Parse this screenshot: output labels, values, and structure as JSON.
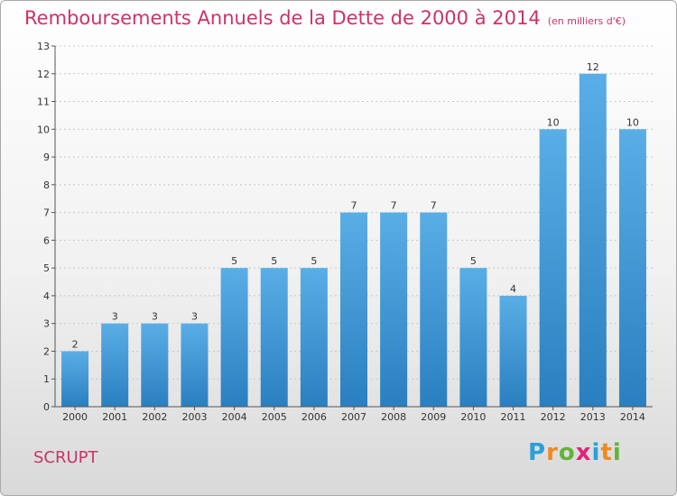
{
  "header": {
    "title": "Remboursements Annuels de la Dette de 2000 à 2014",
    "subtitle": "(en milliers d'€)"
  },
  "footer": {
    "commune": "SCRUPT",
    "logo_letters": [
      "P",
      "r",
      "o",
      "x",
      "i",
      "t",
      "i"
    ],
    "logo_colors": [
      "#2ba0d8",
      "#f08a1d",
      "#5fb537",
      "#e2237a",
      "#2ba0d8",
      "#f08a1d",
      "#5fb537"
    ]
  },
  "colors": {
    "bar_top": "#5aaee6",
    "bar_bottom": "#2a7fc0",
    "title": "#cc3366"
  },
  "chart_data": {
    "type": "bar",
    "categories": [
      "2000",
      "2001",
      "2002",
      "2003",
      "2004",
      "2005",
      "2006",
      "2007",
      "2008",
      "2009",
      "2010",
      "2011",
      "2012",
      "2013",
      "2014"
    ],
    "values": [
      2,
      3,
      3,
      3,
      5,
      5,
      5,
      7,
      7,
      7,
      5,
      4,
      10,
      12,
      10
    ],
    "title": "Remboursements Annuels de la Dette de 2000 à 2014",
    "xlabel": "",
    "ylabel": "",
    "ylim": [
      0,
      13
    ],
    "yticks": [
      0,
      1,
      2,
      3,
      4,
      5,
      6,
      7,
      8,
      9,
      10,
      11,
      12,
      13
    ],
    "grid": true
  }
}
